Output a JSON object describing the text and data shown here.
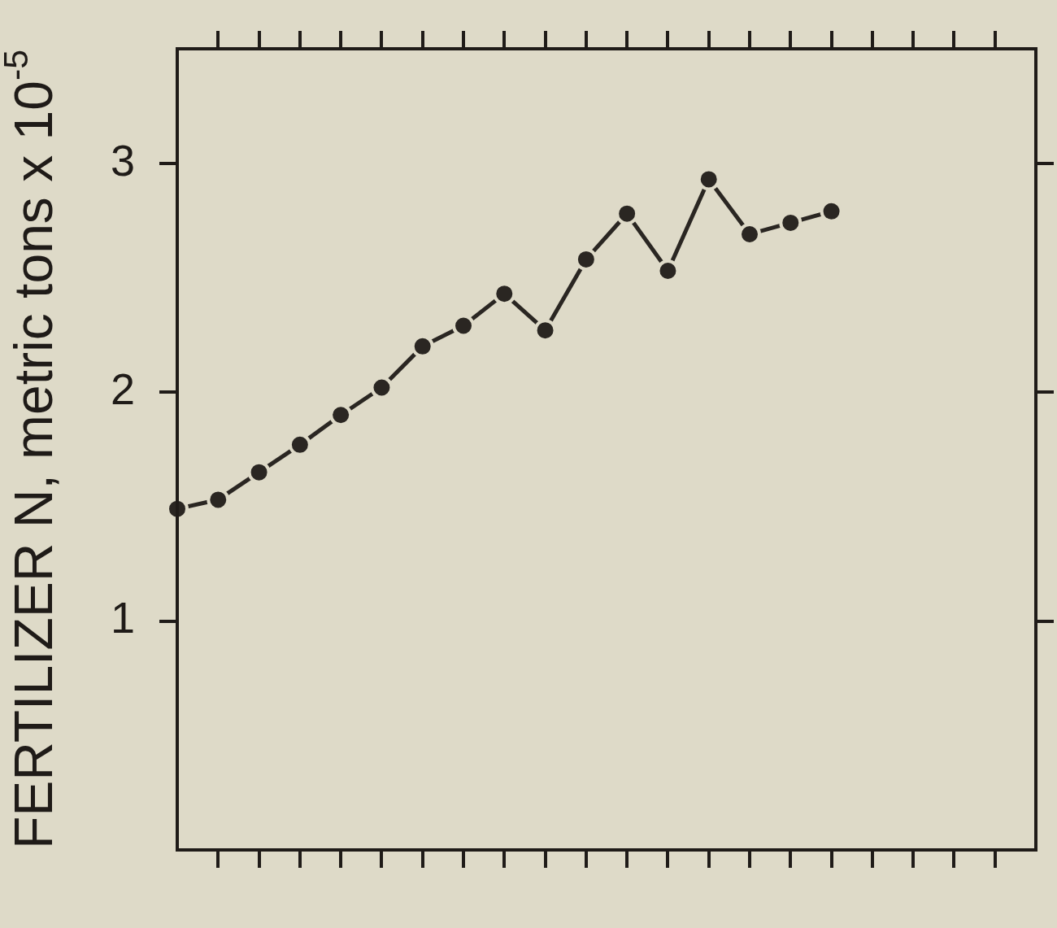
{
  "chart_data": {
    "type": "line",
    "ylabel": "FERTILIZER N, metric tons x 10$^{-5}$",
    "categories": [
      null,
      null,
      null,
      null,
      null,
      null,
      null,
      null,
      null,
      null,
      null,
      null,
      null,
      null,
      null,
      null,
      null,
      null,
      null,
      null,
      null,
      null
    ],
    "values": [
      1.49,
      1.53,
      1.65,
      1.77,
      1.9,
      2.02,
      2.2,
      2.29,
      2.43,
      2.27,
      2.58,
      2.78,
      2.53,
      2.93,
      2.69,
      2.74,
      2.79,
      null,
      null,
      null,
      null,
      null
    ],
    "color": "#2a2622",
    "ylim": [
      0,
      3.5
    ],
    "yticks": [
      1,
      2,
      3
    ],
    "tick_labels": "y",
    "marker": "circle",
    "line_style": "solid"
  }
}
